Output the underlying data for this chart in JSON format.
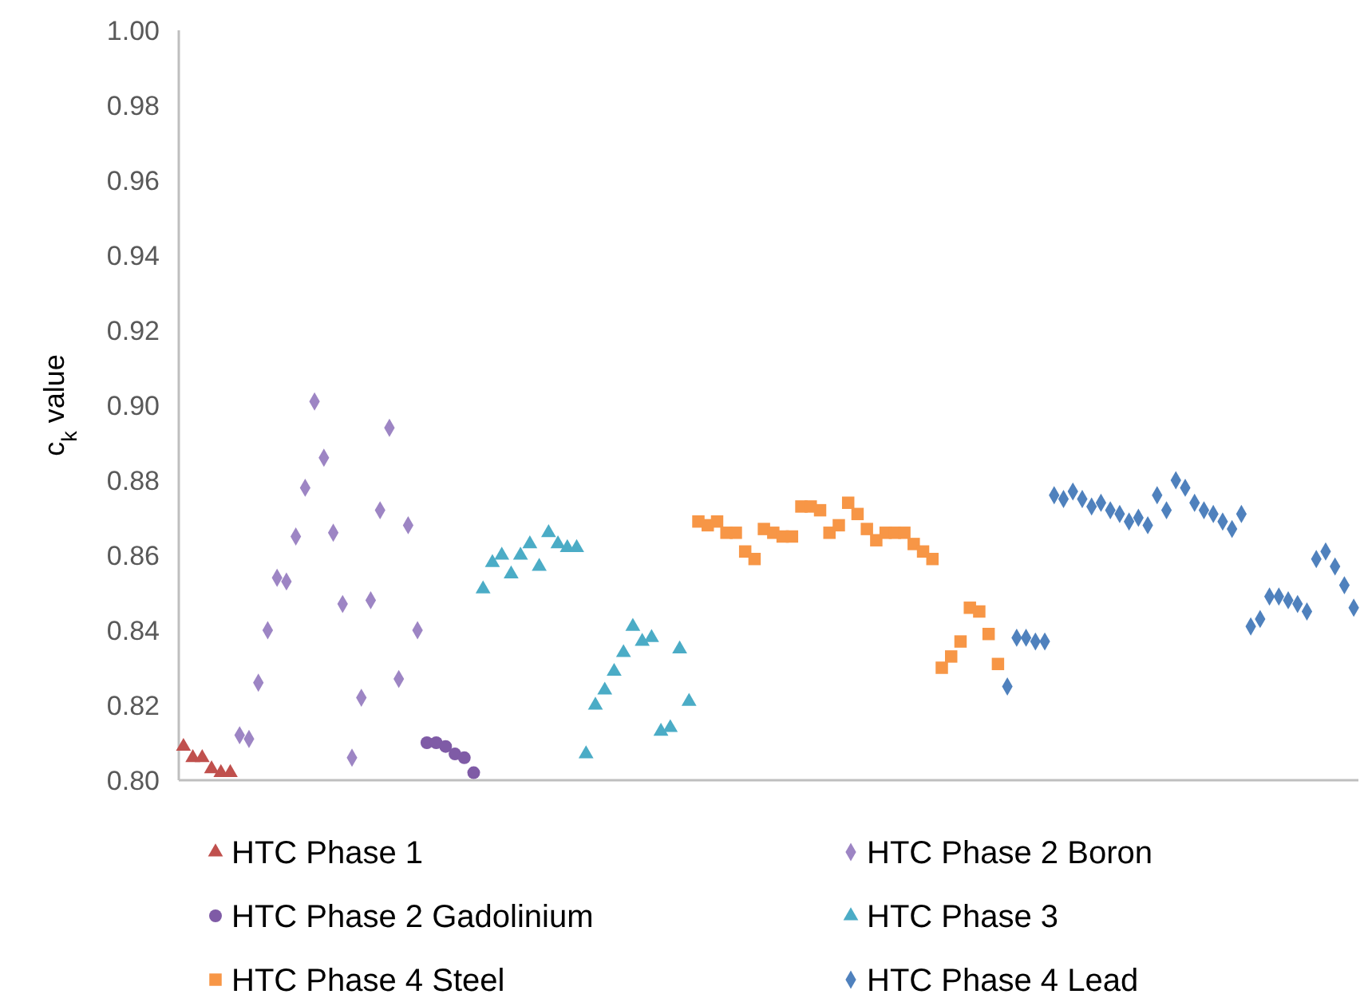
{
  "chart_data": {
    "type": "scatter",
    "ylabel": "c$_{k}$ value",
    "ylim": [
      0.8,
      1.0
    ],
    "yticks": [
      {
        "value": 0.8,
        "label": "0.80"
      },
      {
        "value": 0.82,
        "label": "0.82"
      },
      {
        "value": 0.84,
        "label": "0.84"
      },
      {
        "value": 0.86,
        "label": "0.86"
      },
      {
        "value": 0.88,
        "label": "0.88"
      },
      {
        "value": 0.9,
        "label": "0.90"
      },
      {
        "value": 0.92,
        "label": "0.92"
      },
      {
        "value": 0.94,
        "label": "0.94"
      },
      {
        "value": 0.96,
        "label": "0.96"
      },
      {
        "value": 0.98,
        "label": "0.98"
      },
      {
        "value": 1.0,
        "label": "1.00"
      }
    ],
    "tick_labels": "y",
    "grid": false,
    "legend": "bottom",
    "categories": [
      null,
      null,
      null,
      null,
      null,
      null,
      null,
      null,
      null,
      null,
      null,
      null,
      null,
      null,
      null,
      null,
      null,
      null,
      null,
      null,
      null,
      null,
      null,
      null,
      null,
      null,
      null,
      null,
      null,
      null,
      null,
      null,
      null,
      null,
      null,
      null,
      null,
      null,
      null,
      null,
      null,
      null,
      null,
      null,
      null,
      null,
      null,
      null,
      null,
      null,
      null,
      null,
      null,
      null,
      null,
      null,
      null,
      null,
      null,
      null,
      null,
      null,
      null,
      null,
      null,
      null,
      null,
      null,
      null,
      null,
      null,
      null,
      null,
      null,
      null,
      null,
      null,
      null,
      null,
      null,
      null,
      null,
      null,
      null,
      null,
      null,
      null,
      null,
      null,
      null,
      null,
      null,
      null,
      null,
      null,
      null,
      null,
      null,
      null,
      null,
      null,
      null,
      null,
      null,
      null,
      null,
      null,
      null,
      null,
      null,
      null,
      null,
      null,
      null,
      null,
      null,
      null,
      null,
      null,
      null,
      null,
      null,
      null,
      null,
      null,
      null
    ],
    "series": [
      {
        "name": "HTC Phase 1",
        "color": "#c0504d",
        "marker": "triangle",
        "values": [
          0.809,
          0.806,
          0.806,
          0.803,
          0.802,
          0.802,
          null,
          null,
          null,
          null,
          null,
          null,
          null,
          null,
          null,
          null,
          null,
          null,
          null,
          null,
          null,
          null,
          null,
          null,
          null,
          null,
          null,
          null,
          null,
          null,
          null,
          null,
          null,
          null,
          null,
          null,
          null,
          null,
          null,
          null,
          null,
          null,
          null,
          null,
          null,
          null,
          null,
          null,
          null,
          null,
          null,
          null,
          null,
          null,
          null,
          null,
          null,
          null,
          null,
          null,
          null,
          null,
          null,
          null,
          null,
          null,
          null,
          null,
          null,
          null,
          null,
          null,
          null,
          null,
          null,
          null,
          null,
          null,
          null,
          null,
          null,
          null,
          null,
          null,
          null,
          null,
          null,
          null,
          null,
          null,
          null,
          null,
          null,
          null,
          null,
          null,
          null,
          null,
          null,
          null,
          null,
          null,
          null,
          null,
          null,
          null,
          null,
          null,
          null,
          null,
          null,
          null,
          null,
          null,
          null,
          null,
          null,
          null,
          null,
          null,
          null,
          null,
          null,
          null,
          null,
          null
        ]
      },
      {
        "name": "HTC Phase 2 Boron",
        "color": "#9d85c4",
        "marker": "diamond",
        "values": [
          null,
          null,
          null,
          null,
          null,
          null,
          0.812,
          0.811,
          0.826,
          0.84,
          0.854,
          0.853,
          0.865,
          0.878,
          0.901,
          0.886,
          0.866,
          0.847,
          0.806,
          0.822,
          0.848,
          0.872,
          0.894,
          0.827,
          0.868,
          0.84,
          null,
          null,
          null,
          null,
          null,
          null,
          null,
          null,
          null,
          null,
          null,
          null,
          null,
          null,
          null,
          null,
          null,
          null,
          null,
          null,
          null,
          null,
          null,
          null,
          null,
          null,
          null,
          null,
          null,
          null,
          null,
          null,
          null,
          null,
          null,
          null,
          null,
          null,
          null,
          null,
          null,
          null,
          null,
          null,
          null,
          null,
          null,
          null,
          null,
          null,
          null,
          null,
          null,
          null,
          null,
          null,
          null,
          null,
          null,
          null,
          null,
          null,
          null,
          null,
          null,
          null,
          null,
          null,
          null,
          null,
          null,
          null,
          null,
          null,
          null,
          null,
          null,
          null,
          null,
          null,
          null,
          null,
          null,
          null,
          null,
          null,
          null,
          null,
          null,
          null,
          null,
          null,
          null,
          null,
          null,
          null,
          null,
          null,
          null,
          null
        ]
      },
      {
        "name": "HTC Phase 2 Gadolinium",
        "color": "#7f5ba6",
        "marker": "circle",
        "values": [
          null,
          null,
          null,
          null,
          null,
          null,
          null,
          null,
          null,
          null,
          null,
          null,
          null,
          null,
          null,
          null,
          null,
          null,
          null,
          null,
          null,
          null,
          null,
          null,
          null,
          null,
          0.81,
          0.81,
          0.809,
          0.807,
          0.806,
          0.802,
          null,
          null,
          null,
          null,
          null,
          null,
          null,
          null,
          null,
          null,
          null,
          null,
          null,
          null,
          null,
          null,
          null,
          null,
          null,
          null,
          null,
          null,
          null,
          null,
          null,
          null,
          null,
          null,
          null,
          null,
          null,
          null,
          null,
          null,
          null,
          null,
          null,
          null,
          null,
          null,
          null,
          null,
          null,
          null,
          null,
          null,
          null,
          null,
          null,
          null,
          null,
          null,
          null,
          null,
          null,
          null,
          null,
          null,
          null,
          null,
          null,
          null,
          null,
          null,
          null,
          null,
          null,
          null,
          null,
          null,
          null,
          null,
          null,
          null,
          null,
          null,
          null,
          null,
          null,
          null,
          null,
          null,
          null,
          null,
          null,
          null,
          null,
          null,
          null,
          null,
          null,
          null,
          null,
          null
        ]
      },
      {
        "name": "HTC Phase 3",
        "color": "#4bacc6",
        "marker": "triangle",
        "values": [
          null,
          null,
          null,
          null,
          null,
          null,
          null,
          null,
          null,
          null,
          null,
          null,
          null,
          null,
          null,
          null,
          null,
          null,
          null,
          null,
          null,
          null,
          null,
          null,
          null,
          null,
          null,
          null,
          null,
          null,
          null,
          null,
          0.851,
          0.858,
          0.86,
          0.855,
          0.86,
          0.863,
          0.857,
          0.866,
          0.863,
          0.862,
          0.862,
          0.807,
          0.82,
          0.824,
          0.829,
          0.834,
          0.841,
          0.837,
          0.838,
          0.813,
          0.814,
          0.835,
          0.821,
          null,
          null,
          null,
          null,
          null,
          null,
          null,
          null,
          null,
          null,
          null,
          null,
          null,
          null,
          null,
          null,
          null,
          null,
          null,
          null,
          null,
          null,
          null,
          null,
          null,
          null,
          null,
          null,
          null,
          null,
          null,
          null,
          null,
          null,
          null,
          null,
          null,
          null,
          null,
          null,
          null,
          null,
          null,
          null,
          null,
          null,
          null,
          null,
          null,
          null,
          null,
          null,
          null,
          null,
          null,
          null,
          null,
          null,
          null,
          null,
          null,
          null,
          null,
          null,
          null,
          null,
          null,
          null,
          null,
          null,
          null
        ]
      },
      {
        "name": "HTC Phase 4 Steel",
        "color": "#f79646",
        "marker": "square",
        "values": [
          null,
          null,
          null,
          null,
          null,
          null,
          null,
          null,
          null,
          null,
          null,
          null,
          null,
          null,
          null,
          null,
          null,
          null,
          null,
          null,
          null,
          null,
          null,
          null,
          null,
          null,
          null,
          null,
          null,
          null,
          null,
          null,
          null,
          null,
          null,
          null,
          null,
          null,
          null,
          null,
          null,
          null,
          null,
          null,
          null,
          null,
          null,
          null,
          null,
          null,
          null,
          null,
          null,
          null,
          null,
          0.869,
          0.868,
          0.869,
          0.866,
          0.866,
          0.861,
          0.859,
          0.867,
          0.866,
          0.865,
          0.865,
          0.873,
          0.873,
          0.872,
          0.866,
          0.868,
          0.874,
          0.871,
          0.867,
          0.864,
          0.866,
          0.866,
          0.866,
          0.863,
          0.861,
          0.859,
          0.83,
          0.833,
          0.837,
          0.846,
          0.845,
          0.839,
          0.831,
          null,
          null,
          null,
          null,
          null,
          null,
          null,
          null,
          null,
          null,
          null,
          null,
          null,
          null,
          null,
          null,
          null,
          null,
          null,
          null,
          null,
          null,
          null,
          null,
          null,
          null,
          null,
          null,
          null,
          null,
          null,
          null,
          null,
          null,
          null,
          null,
          null,
          null
        ]
      },
      {
        "name": "HTC Phase 4 Lead",
        "color": "#4f81bd",
        "marker": "diamond",
        "values": [
          null,
          null,
          null,
          null,
          null,
          null,
          null,
          null,
          null,
          null,
          null,
          null,
          null,
          null,
          null,
          null,
          null,
          null,
          null,
          null,
          null,
          null,
          null,
          null,
          null,
          null,
          null,
          null,
          null,
          null,
          null,
          null,
          null,
          null,
          null,
          null,
          null,
          null,
          null,
          null,
          null,
          null,
          null,
          null,
          null,
          null,
          null,
          null,
          null,
          null,
          null,
          null,
          null,
          null,
          null,
          null,
          null,
          null,
          null,
          null,
          null,
          null,
          null,
          null,
          null,
          null,
          null,
          null,
          null,
          null,
          null,
          null,
          null,
          null,
          null,
          null,
          null,
          null,
          null,
          null,
          null,
          null,
          null,
          null,
          null,
          null,
          null,
          null,
          0.825,
          0.838,
          0.838,
          0.837,
          0.837,
          0.876,
          0.875,
          0.877,
          0.875,
          0.873,
          0.874,
          0.872,
          0.871,
          0.869,
          0.87,
          0.868,
          0.876,
          0.872,
          0.88,
          0.878,
          0.874,
          0.872,
          0.871,
          0.869,
          0.867,
          0.871,
          0.841,
          0.843,
          0.849,
          0.849,
          0.848,
          0.847,
          0.845,
          0.859,
          0.861,
          0.857,
          0.852,
          0.846
        ]
      }
    ]
  }
}
